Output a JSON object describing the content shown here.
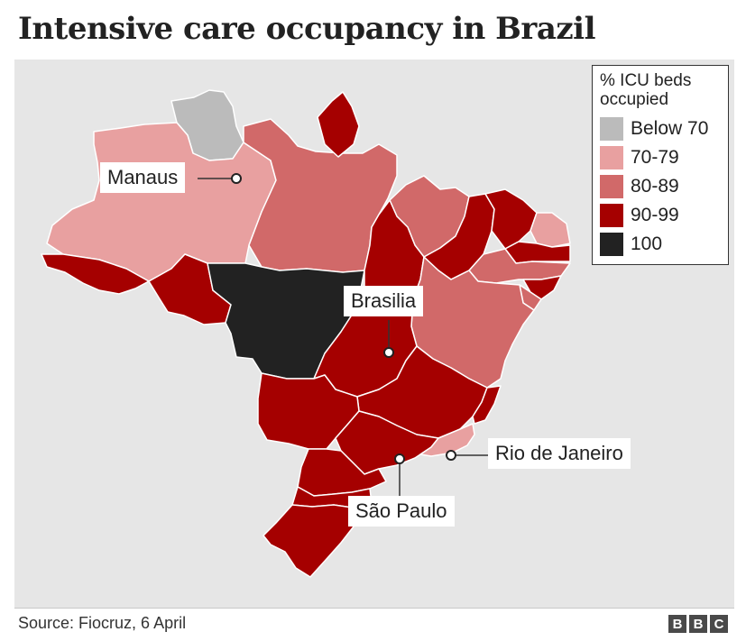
{
  "title": "Intensive care occupancy in Brazil",
  "legend": {
    "title": "% ICU beds occupied",
    "items": [
      {
        "label": "Below 70",
        "color": "#bbbbbb"
      },
      {
        "label": "70-79",
        "color": "#e8a0a0"
      },
      {
        "label": "80-89",
        "color": "#d16969"
      },
      {
        "label": "90-99",
        "color": "#a50000"
      },
      {
        "label": "100",
        "color": "#222222"
      }
    ]
  },
  "cities": {
    "manaus": "Manaus",
    "brasilia": "Brasilia",
    "rio": "Rio de Janeiro",
    "sao_paulo": "São Paulo"
  },
  "footer": {
    "source": "Source: Fiocruz, 6 April",
    "logo_letters": [
      "B",
      "B",
      "C"
    ]
  },
  "background_color": "#e6e6e6",
  "border_color": "#ffffff"
}
